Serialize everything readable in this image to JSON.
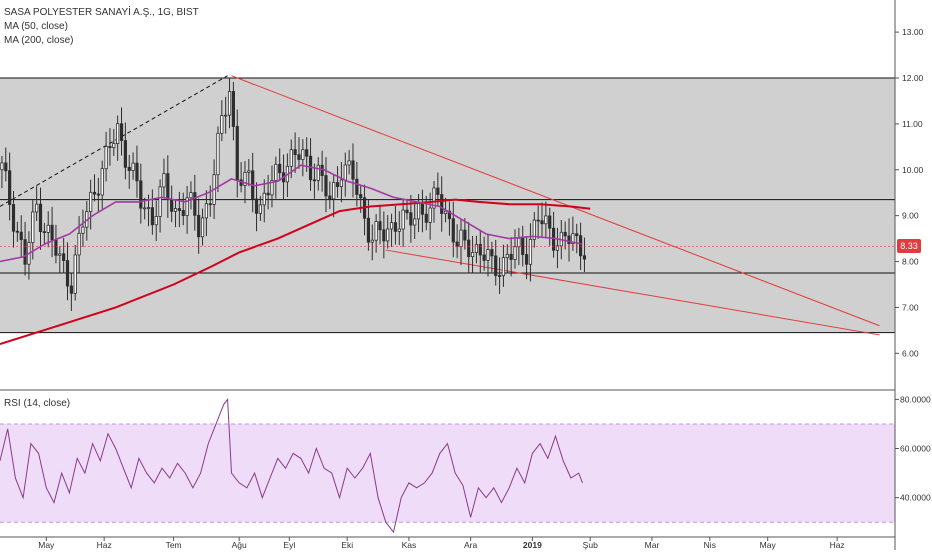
{
  "header": {
    "symbol_title": "SASA POLYESTER SANAYİ A.Ş., 1G, BIST",
    "ma50_label": "MA (50, close)",
    "ma200_label": "MA (200, close)"
  },
  "rsi_panel": {
    "label": "RSI (14, close)"
  },
  "last_price_badge": "8.33",
  "colors": {
    "background": "#ffffff",
    "shaded_region": "#d0d0d0",
    "candle_up": "#2e2e2e",
    "candle_down": "#2e2e2e",
    "ma50": "#a33aa3",
    "ma200": "#d0021b",
    "trendline": "#e23b3b",
    "rsi_line": "#8a3a8a",
    "rsi_band": "#eedcf8",
    "price_badge": "#e23b3b"
  },
  "chart_data": [
    {
      "type": "candlestick",
      "title": "SASA POLYESTER SANAYİ A.Ş., 1G, BIST",
      "x_tick_labels": [
        "May",
        "Haz",
        "Tem",
        "Ağu",
        "Eyl",
        "Eki",
        "Kas",
        "Ara",
        "2019",
        "Şub",
        "Mar",
        "Nis",
        "May",
        "Haz"
      ],
      "y_tick_labels": [
        "13.00",
        "12.00",
        "11.00",
        "10.00",
        "9.00",
        "8.00",
        "7.00",
        "6.00"
      ],
      "ylim": [
        5.2,
        13.7
      ],
      "last_price": 8.33,
      "close_path": [
        [
          0,
          10.0
        ],
        [
          3,
          9.0
        ],
        [
          6,
          8.0
        ],
        [
          9,
          9.2
        ],
        [
          12,
          8.6
        ],
        [
          15,
          8.0
        ],
        [
          18,
          7.6
        ],
        [
          21,
          8.8
        ],
        [
          24,
          9.6
        ],
        [
          27,
          10.2
        ],
        [
          30,
          10.9
        ],
        [
          33,
          10.1
        ],
        [
          36,
          9.3
        ],
        [
          39,
          9.0
        ],
        [
          42,
          9.6
        ],
        [
          45,
          9.1
        ],
        [
          48,
          9.3
        ],
        [
          51,
          8.8
        ],
        [
          54,
          9.4
        ],
        [
          57,
          11.0
        ],
        [
          59,
          11.9
        ],
        [
          61,
          9.8
        ],
        [
          64,
          9.7
        ],
        [
          67,
          9.2
        ],
        [
          70,
          9.7
        ],
        [
          73,
          10.1
        ],
        [
          76,
          10.3
        ],
        [
          79,
          10.2
        ],
        [
          82,
          9.9
        ],
        [
          85,
          9.3
        ],
        [
          88,
          10.1
        ],
        [
          91,
          9.8
        ],
        [
          94,
          9.0
        ],
        [
          96,
          8.5
        ],
        [
          99,
          8.6
        ],
        [
          102,
          8.9
        ],
        [
          105,
          8.8
        ],
        [
          108,
          9.2
        ],
        [
          111,
          9.0
        ],
        [
          113,
          9.5
        ],
        [
          116,
          8.9
        ],
        [
          118,
          8.3
        ],
        [
          121,
          8.4
        ],
        [
          124,
          8.2
        ],
        [
          127,
          7.9
        ],
        [
          130,
          8.0
        ],
        [
          133,
          8.2
        ],
        [
          136,
          8.3
        ],
        [
          139,
          8.9
        ],
        [
          142,
          8.7
        ],
        [
          145,
          8.4
        ],
        [
          148,
          8.5
        ],
        [
          151,
          8.33
        ]
      ],
      "ma50_path": [
        [
          0,
          8.0
        ],
        [
          6,
          8.1
        ],
        [
          12,
          8.4
        ],
        [
          18,
          8.6
        ],
        [
          24,
          9.0
        ],
        [
          30,
          9.3
        ],
        [
          36,
          9.3
        ],
        [
          42,
          9.4
        ],
        [
          48,
          9.3
        ],
        [
          54,
          9.5
        ],
        [
          60,
          9.8
        ],
        [
          66,
          9.65
        ],
        [
          72,
          9.75
        ],
        [
          78,
          10.1
        ],
        [
          84,
          10.0
        ],
        [
          90,
          9.75
        ],
        [
          96,
          9.6
        ],
        [
          102,
          9.4
        ],
        [
          108,
          9.3
        ],
        [
          114,
          9.2
        ],
        [
          120,
          8.9
        ],
        [
          126,
          8.6
        ],
        [
          132,
          8.5
        ],
        [
          138,
          8.55
        ],
        [
          144,
          8.5
        ],
        [
          151,
          8.38
        ]
      ],
      "ma200_path": [
        [
          0,
          6.2
        ],
        [
          15,
          6.6
        ],
        [
          30,
          7.0
        ],
        [
          45,
          7.5
        ],
        [
          55,
          7.9
        ],
        [
          62,
          8.2
        ],
        [
          72,
          8.5
        ],
        [
          80,
          8.8
        ],
        [
          88,
          9.1
        ],
        [
          96,
          9.2
        ],
        [
          104,
          9.25
        ],
        [
          112,
          9.3
        ],
        [
          118,
          9.35
        ],
        [
          124,
          9.3
        ],
        [
          132,
          9.25
        ],
        [
          140,
          9.25
        ],
        [
          148,
          9.2
        ],
        [
          153,
          9.15
        ]
      ],
      "horizontal_levels": [
        12.0,
        9.35,
        7.75,
        6.45
      ],
      "trendlines": [
        {
          "kind": "resistance",
          "from": [
            60,
            12.05
          ],
          "to": [
            228,
            6.6
          ]
        },
        {
          "kind": "support",
          "from": [
            100,
            8.25
          ],
          "to": [
            228,
            6.4
          ]
        },
        {
          "kind": "dashed",
          "from": [
            0,
            9.2
          ],
          "to": [
            59,
            12.05
          ]
        }
      ]
    },
    {
      "type": "line",
      "title": "RSI (14, close)",
      "y_tick_labels": [
        "80.0000",
        "60.0000",
        "40.0000"
      ],
      "ylim": [
        24,
        83
      ],
      "band": [
        30,
        70
      ],
      "values": [
        [
          0,
          55
        ],
        [
          2,
          68
        ],
        [
          4,
          48
        ],
        [
          6,
          40
        ],
        [
          8,
          62
        ],
        [
          10,
          58
        ],
        [
          12,
          44
        ],
        [
          14,
          38
        ],
        [
          16,
          50
        ],
        [
          18,
          42
        ],
        [
          20,
          56
        ],
        [
          22,
          50
        ],
        [
          24,
          62
        ],
        [
          26,
          55
        ],
        [
          28,
          66
        ],
        [
          30,
          60
        ],
        [
          32,
          52
        ],
        [
          34,
          44
        ],
        [
          36,
          56
        ],
        [
          38,
          50
        ],
        [
          40,
          46
        ],
        [
          42,
          52
        ],
        [
          44,
          48
        ],
        [
          46,
          54
        ],
        [
          48,
          50
        ],
        [
          50,
          44
        ],
        [
          52,
          50
        ],
        [
          54,
          62
        ],
        [
          56,
          70
        ],
        [
          58,
          78
        ],
        [
          59,
          80
        ],
        [
          60,
          50
        ],
        [
          62,
          46
        ],
        [
          64,
          44
        ],
        [
          66,
          50
        ],
        [
          68,
          40
        ],
        [
          70,
          48
        ],
        [
          72,
          56
        ],
        [
          74,
          52
        ],
        [
          76,
          58
        ],
        [
          78,
          56
        ],
        [
          80,
          50
        ],
        [
          82,
          60
        ],
        [
          84,
          52
        ],
        [
          86,
          50
        ],
        [
          88,
          40
        ],
        [
          90,
          52
        ],
        [
          92,
          48
        ],
        [
          94,
          52
        ],
        [
          96,
          58
        ],
        [
          98,
          40
        ],
        [
          100,
          30
        ],
        [
          102,
          26
        ],
        [
          104,
          40
        ],
        [
          106,
          46
        ],
        [
          108,
          44
        ],
        [
          110,
          46
        ],
        [
          112,
          50
        ],
        [
          114,
          58
        ],
        [
          116,
          62
        ],
        [
          118,
          50
        ],
        [
          120,
          45
        ],
        [
          122,
          32
        ],
        [
          124,
          44
        ],
        [
          126,
          40
        ],
        [
          128,
          44
        ],
        [
          130,
          38
        ],
        [
          132,
          44
        ],
        [
          134,
          52
        ],
        [
          136,
          46
        ],
        [
          138,
          58
        ],
        [
          140,
          62
        ],
        [
          142,
          56
        ],
        [
          144,
          65
        ],
        [
          146,
          55
        ],
        [
          148,
          48
        ],
        [
          150,
          50
        ],
        [
          151,
          46
        ]
      ]
    }
  ]
}
